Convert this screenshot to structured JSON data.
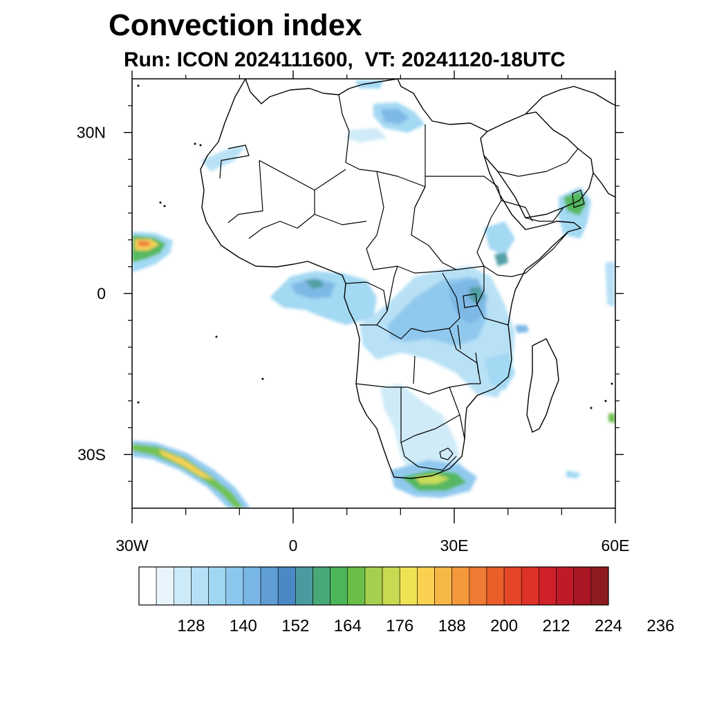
{
  "title": "Convection index",
  "subtitle": "Run: ICON 2024111600,  VT: 20241120-18UTC",
  "map": {
    "lon_range": [
      -30,
      60
    ],
    "lat_range": [
      -40,
      40
    ],
    "lat_ticks": [
      {
        "value": 30,
        "label": "30N"
      },
      {
        "value": 0,
        "label": "0"
      },
      {
        "value": -30,
        "label": "30S"
      }
    ],
    "lon_ticks": [
      {
        "value": -30,
        "label": "30W"
      },
      {
        "value": 0,
        "label": "0"
      },
      {
        "value": 30,
        "label": "30E"
      },
      {
        "value": 60,
        "label": "60E"
      }
    ],
    "minor_lat_ticks": [
      35,
      25,
      20,
      15,
      10,
      5,
      -5,
      -10,
      -15,
      -20,
      -25,
      -35
    ],
    "minor_lon_ticks": [
      -20,
      -10,
      10,
      20,
      40,
      50
    ]
  },
  "colorbar": {
    "colors": [
      "#ffffff",
      "#e8f5fc",
      "#cdeaf8",
      "#b5e0f6",
      "#9fd7f3",
      "#8cc7ee",
      "#78b6e5",
      "#5f9dd4",
      "#4a88c6",
      "#4a9aa0",
      "#48a878",
      "#4db559",
      "#6bbf48",
      "#a7cf4f",
      "#c8da52",
      "#efe353",
      "#f9d04f",
      "#f6b746",
      "#f4983c",
      "#ef7a31",
      "#eb5e2a",
      "#e54627",
      "#de3127",
      "#d02128",
      "#bf1a27",
      "#aa1623",
      "#8e1c1f"
    ],
    "labels": [
      "128",
      "140",
      "152",
      "164",
      "176",
      "188",
      "200",
      "212",
      "224",
      "236"
    ],
    "label_boundaries": [
      3,
      6,
      9,
      12,
      15,
      18,
      21,
      24,
      27,
      30
    ]
  }
}
